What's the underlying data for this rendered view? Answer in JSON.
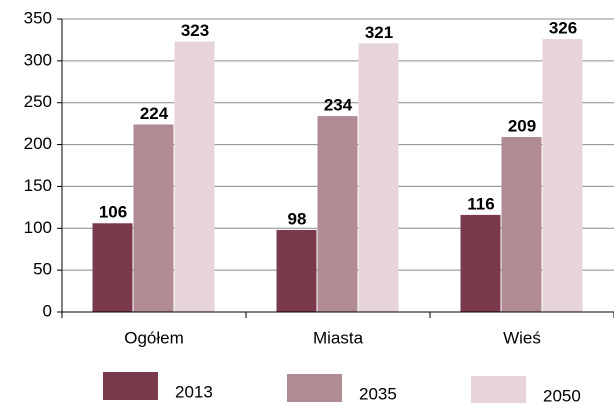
{
  "chart_data": {
    "type": "bar",
    "categories": [
      "Ogółem",
      "Miasta",
      "Wieś"
    ],
    "series": [
      {
        "name": "2013",
        "color": "#7b3a4c",
        "values": [
          106,
          98,
          116
        ]
      },
      {
        "name": "2035",
        "color": "#b08b93",
        "values": [
          224,
          234,
          209
        ]
      },
      {
        "name": "2050",
        "color": "#e6d4d8",
        "values": [
          323,
          321,
          326
        ]
      }
    ],
    "ylim": [
      0,
      350
    ],
    "yticks": [
      0,
      50,
      100,
      150,
      200,
      250,
      300,
      350
    ],
    "grid": true,
    "legend": "bottom"
  }
}
